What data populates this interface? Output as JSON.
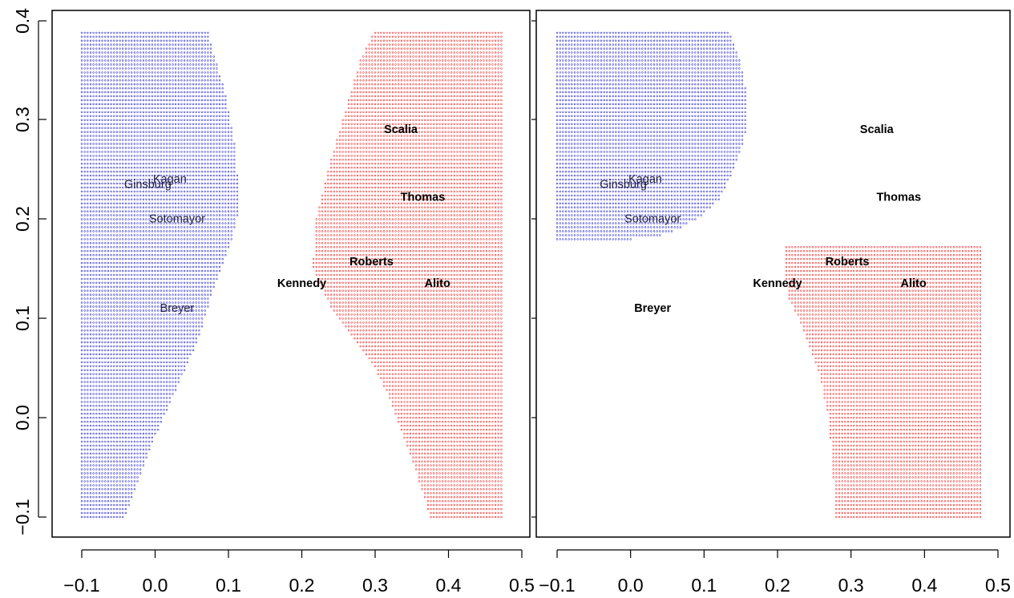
{
  "chart_data": [
    {
      "type": "scatter",
      "panel": "left",
      "xlim": [
        -0.1,
        0.5
      ],
      "ylim": [
        -0.1,
        0.4
      ],
      "x_ticks": [
        "−0.1",
        "0.0",
        "0.1",
        "0.2",
        "0.3",
        "0.4",
        "0.5"
      ],
      "y_ticks": [
        "−0.1",
        "0.0",
        "0.1",
        "0.2",
        "0.3",
        "0.4"
      ],
      "grid": false,
      "points": [
        {
          "label": "Kagan",
          "x": 0.02,
          "y": 0.24,
          "style": "plain"
        },
        {
          "label": "Ginsburg",
          "x": -0.01,
          "y": 0.235,
          "style": "plain"
        },
        {
          "label": "Sotomayor",
          "x": 0.03,
          "y": 0.2,
          "style": "plain"
        },
        {
          "label": "Breyer",
          "x": 0.03,
          "y": 0.11,
          "style": "plain"
        },
        {
          "label": "Kennedy",
          "x": 0.2,
          "y": 0.135,
          "style": "bold"
        },
        {
          "label": "Roberts",
          "x": 0.295,
          "y": 0.157,
          "style": "bold"
        },
        {
          "label": "Alito",
          "x": 0.385,
          "y": 0.135,
          "style": "bold"
        },
        {
          "label": "Scalia",
          "x": 0.335,
          "y": 0.29,
          "style": "bold"
        },
        {
          "label": "Thomas",
          "x": 0.365,
          "y": 0.222,
          "style": "bold"
        }
      ],
      "regions": [
        {
          "class": "blue",
          "color": "#3333cc",
          "polygon": [
            [
              -0.1,
              0.39
            ],
            [
              0.075,
              0.39
            ],
            [
              0.075,
              0.38
            ],
            [
              0.095,
              0.33
            ],
            [
              0.11,
              0.27
            ],
            [
              0.115,
              0.21
            ],
            [
              0.105,
              0.18
            ],
            [
              0.08,
              0.13
            ],
            [
              0.06,
              0.08
            ],
            [
              0.03,
              0.03
            ],
            [
              0.0,
              -0.02
            ],
            [
              -0.02,
              -0.06
            ],
            [
              -0.04,
              -0.1
            ],
            [
              -0.1,
              -0.1
            ]
          ]
        },
        {
          "class": "red",
          "color": "#ee3333",
          "polygon": [
            [
              0.3,
              0.39
            ],
            [
              0.475,
              0.39
            ],
            [
              0.475,
              -0.1
            ],
            [
              0.375,
              -0.1
            ],
            [
              0.35,
              -0.04
            ],
            [
              0.325,
              0.01
            ],
            [
              0.3,
              0.05
            ],
            [
              0.27,
              0.08
            ],
            [
              0.24,
              0.11
            ],
            [
              0.215,
              0.15
            ],
            [
              0.22,
              0.2
            ],
            [
              0.24,
              0.26
            ],
            [
              0.26,
              0.31
            ],
            [
              0.28,
              0.36
            ]
          ]
        }
      ]
    },
    {
      "type": "scatter",
      "panel": "right",
      "xlim": [
        -0.1,
        0.5
      ],
      "ylim": [
        -0.1,
        0.4
      ],
      "x_ticks": [
        "−0.1",
        "0.0",
        "0.1",
        "0.2",
        "0.3",
        "0.4",
        "0.5"
      ],
      "y_ticks": [
        "−0.1",
        "0.0",
        "0.1",
        "0.2",
        "0.3",
        "0.4"
      ],
      "grid": false,
      "points": [
        {
          "label": "Kagan",
          "x": 0.02,
          "y": 0.24,
          "style": "plain"
        },
        {
          "label": "Ginsburg",
          "x": -0.01,
          "y": 0.235,
          "style": "plain"
        },
        {
          "label": "Sotomayor",
          "x": 0.03,
          "y": 0.2,
          "style": "plain"
        },
        {
          "label": "Breyer",
          "x": 0.03,
          "y": 0.11,
          "style": "bold"
        },
        {
          "label": "Kennedy",
          "x": 0.2,
          "y": 0.135,
          "style": "bold"
        },
        {
          "label": "Roberts",
          "x": 0.295,
          "y": 0.157,
          "style": "bold"
        },
        {
          "label": "Alito",
          "x": 0.385,
          "y": 0.135,
          "style": "bold"
        },
        {
          "label": "Scalia",
          "x": 0.335,
          "y": 0.29,
          "style": "bold"
        },
        {
          "label": "Thomas",
          "x": 0.365,
          "y": 0.222,
          "style": "bold"
        }
      ],
      "regions": [
        {
          "class": "blue",
          "color": "#3333cc",
          "polygon": [
            [
              -0.1,
              0.39
            ],
            [
              0.135,
              0.39
            ],
            [
              0.145,
              0.37
            ],
            [
              0.155,
              0.34
            ],
            [
              0.16,
              0.31
            ],
            [
              0.155,
              0.28
            ],
            [
              0.14,
              0.25
            ],
            [
              0.12,
              0.22
            ],
            [
              0.09,
              0.2
            ],
            [
              0.05,
              0.185
            ],
            [
              0.0,
              0.18
            ],
            [
              -0.1,
              0.18
            ]
          ]
        },
        {
          "class": "red",
          "color": "#ee3333",
          "polygon": [
            [
              0.21,
              0.173
            ],
            [
              0.48,
              0.173
            ],
            [
              0.48,
              -0.1
            ],
            [
              0.28,
              -0.1
            ],
            [
              0.27,
              0.0
            ],
            [
              0.255,
              0.05
            ],
            [
              0.235,
              0.09
            ],
            [
              0.215,
              0.12
            ],
            [
              0.21,
              0.15
            ]
          ]
        }
      ]
    }
  ]
}
